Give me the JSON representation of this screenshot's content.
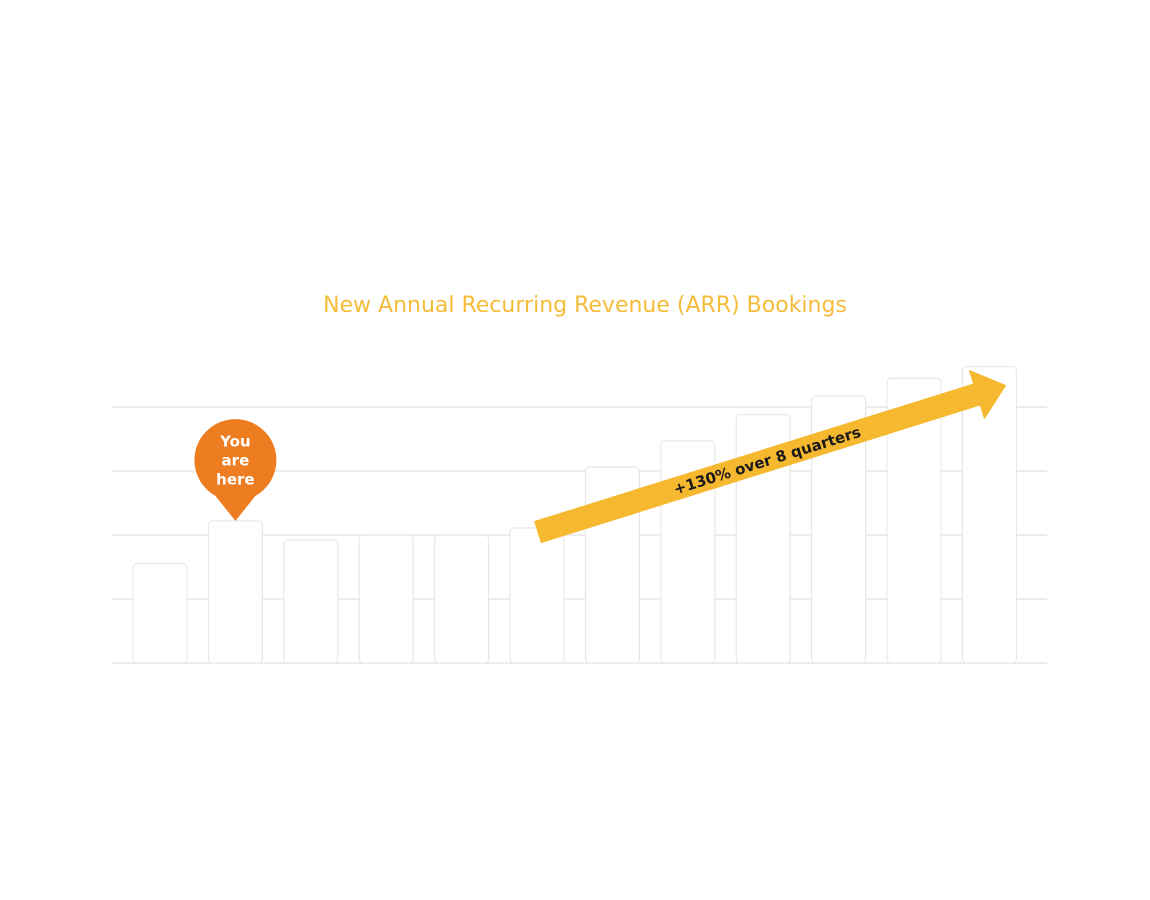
{
  "chart_data": {
    "type": "bar",
    "title": "New Annual Recurring Revenue (ARR) Bookings",
    "categories": [
      null,
      null,
      null,
      null,
      null,
      null,
      null,
      null,
      null,
      null,
      null,
      null
    ],
    "values": [
      1.55,
      2.22,
      1.92,
      2.0,
      2.0,
      2.11,
      3.06,
      3.47,
      3.88,
      4.17,
      4.45,
      4.63
    ],
    "color": "#ffffff",
    "ylim": [
      0,
      5
    ],
    "yticks": [
      0,
      1,
      2,
      3,
      4
    ],
    "grid": true,
    "pin_label": [
      "You",
      "are",
      "here"
    ],
    "pin_color": "#ee7d22",
    "arrow_label": "+130% over 8 quarters",
    "arrow_color": "#f5b82e"
  }
}
